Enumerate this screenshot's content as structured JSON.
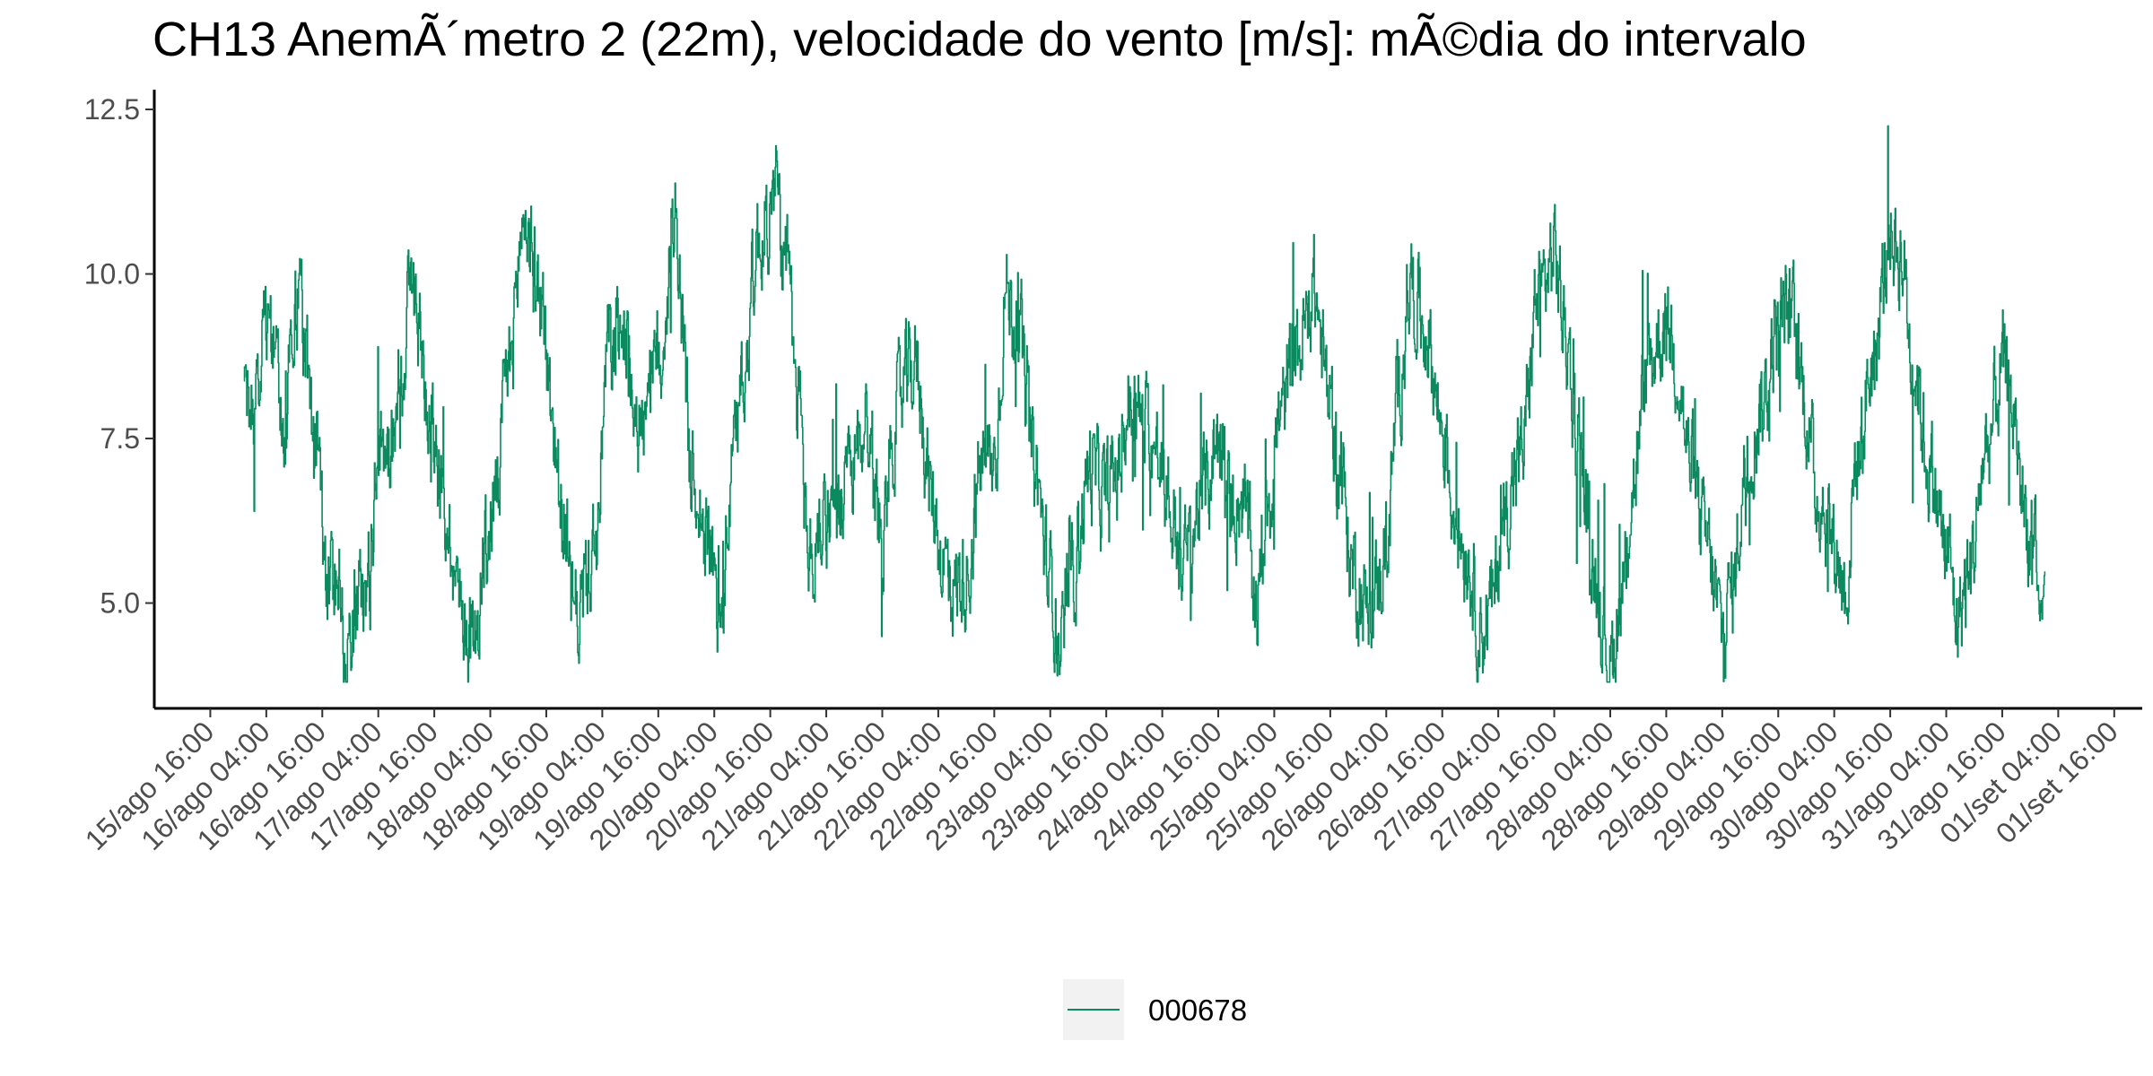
{
  "chart_data": {
    "type": "line",
    "title": "CH13 AnemÃ´metro 2 (22m), velocidade do vento [m/s]: mÃ©dia do intervalo",
    "xlabel": "",
    "ylabel": "",
    "ylim": [
      3.4,
      12.8
    ],
    "yticks": [
      5.0,
      7.5,
      10.0,
      12.5
    ],
    "ytick_labels": [
      "5.0",
      "7.5",
      "10.0",
      "12.5"
    ],
    "xlim": [
      -0.5,
      17.25
    ],
    "xticks": [
      0,
      0.5,
      1,
      1.5,
      2,
      2.5,
      3,
      3.5,
      4,
      4.5,
      5,
      5.5,
      6,
      6.5,
      7,
      7.5,
      8,
      8.5,
      9,
      9.5,
      10,
      10.5,
      11,
      11.5,
      12,
      12.5,
      13,
      13.5,
      14,
      14.5,
      15,
      15.5,
      16,
      16.5,
      17
    ],
    "xtick_labels": [
      "15/ago 16:00",
      "16/ago 04:00",
      "16/ago 16:00",
      "17/ago 04:00",
      "17/ago 16:00",
      "18/ago 04:00",
      "18/ago 16:00",
      "19/ago 04:00",
      "19/ago 16:00",
      "20/ago 04:00",
      "20/ago 16:00",
      "21/ago 04:00",
      "21/ago 16:00",
      "22/ago 04:00",
      "22/ago 16:00",
      "23/ago 04:00",
      "23/ago 16:00",
      "24/ago 04:00",
      "24/ago 16:00",
      "25/ago 04:00",
      "25/ago 16:00",
      "26/ago 04:00",
      "26/ago 16:00",
      "27/ago 04:00",
      "27/ago 16:00",
      "28/ago 04:00",
      "28/ago 16:00",
      "29/ago 04:00",
      "29/ago 16:00",
      "30/ago 04:00",
      "30/ago 16:00",
      "31/ago 04:00",
      "31/ago 16:00",
      "01/set 04:00",
      "01/set 16:00"
    ],
    "x_unit": "days since 15/ago 16:00",
    "grid": false,
    "legend_position": "bottom",
    "series": [
      {
        "name": "000678",
        "color": "#0b8a5f",
        "x": [
          0.3,
          0.4,
          0.5,
          0.65,
          0.8,
          0.95,
          1.05,
          1.15,
          1.2,
          1.3,
          1.4,
          1.5,
          1.6,
          1.7,
          1.8,
          1.95,
          2.1,
          2.25,
          2.35,
          2.45,
          2.55,
          2.65,
          2.8,
          2.95,
          3.05,
          3.15,
          3.25,
          3.35,
          3.45,
          3.55,
          3.7,
          3.85,
          4.0,
          4.15,
          4.3,
          4.45,
          4.55,
          4.65,
          4.75,
          4.9,
          5.05,
          5.15,
          5.25,
          5.35,
          5.5,
          5.6,
          5.7,
          5.85,
          6.0,
          6.1,
          6.2,
          6.3,
          6.45,
          6.55,
          6.65,
          6.75,
          6.9,
          7.0,
          7.1,
          7.2,
          7.35,
          7.5,
          7.6,
          7.7,
          7.85,
          8.0,
          8.1,
          8.2,
          8.35,
          8.5,
          8.6,
          8.7,
          8.85,
          9.0,
          9.1,
          9.2,
          9.35,
          9.45,
          9.55,
          9.7,
          9.85,
          10.0,
          10.1,
          10.2,
          10.35,
          10.5,
          10.6,
          10.7,
          10.85,
          11.0,
          11.1,
          11.2,
          11.35,
          11.45,
          11.55,
          11.7,
          11.85,
          12.0,
          12.1,
          12.2,
          12.35,
          12.5,
          12.6,
          12.7,
          12.85,
          13.0,
          13.1,
          13.2,
          13.35,
          13.5,
          13.6,
          13.7,
          13.85,
          14.0,
          14.1,
          14.2,
          14.35,
          14.5,
          14.6,
          14.7,
          14.85,
          15.0,
          15.1,
          15.2,
          15.35,
          15.5,
          15.6,
          15.7,
          15.85,
          16.0,
          16.1,
          16.2,
          16.28,
          16.33,
          16.38
        ],
        "y": [
          8.5,
          7.8,
          9.3,
          7.9,
          9.6,
          7.0,
          5.0,
          5.6,
          4.2,
          4.9,
          5.2,
          7.0,
          7.3,
          8.6,
          9.9,
          8.1,
          6.4,
          4.9,
          4.3,
          5.7,
          6.6,
          8.4,
          10.8,
          9.7,
          7.8,
          6.2,
          4.7,
          5.3,
          6.0,
          8.8,
          9.1,
          7.6,
          8.6,
          10.8,
          7.1,
          5.9,
          4.7,
          6.8,
          8.6,
          10.5,
          11.2,
          9.8,
          8.0,
          5.6,
          6.5,
          6.2,
          6.8,
          7.8,
          6.1,
          7.7,
          8.3,
          8.6,
          6.5,
          5.6,
          5.2,
          5.5,
          7.2,
          7.1,
          9.7,
          9.3,
          7.1,
          5.3,
          4.3,
          5.6,
          7.0,
          6.6,
          7.0,
          8.0,
          7.7,
          7.0,
          6.2,
          5.6,
          6.6,
          7.5,
          6.5,
          6.6,
          5.1,
          6.7,
          7.8,
          8.8,
          9.7,
          8.0,
          6.8,
          5.5,
          4.8,
          5.8,
          8.0,
          9.9,
          9.2,
          7.7,
          6.5,
          5.9,
          4.6,
          5.0,
          6.4,
          7.2,
          9.6,
          10.3,
          9.1,
          7.6,
          5.6,
          4.1,
          5.1,
          6.8,
          8.7,
          9.3,
          8.7,
          7.2,
          5.9,
          4.6,
          5.3,
          7.0,
          8.0,
          9.2,
          9.5,
          8.4,
          6.7,
          5.9,
          5.2,
          7.2,
          8.7,
          10.6,
          10.3,
          8.7,
          7.1,
          5.8,
          4.8,
          5.4,
          7.3,
          8.5,
          7.9,
          6.3,
          5.7,
          4.8,
          5.2
        ],
        "y_max": 12.25,
        "y_min": 3.8
      }
    ]
  }
}
